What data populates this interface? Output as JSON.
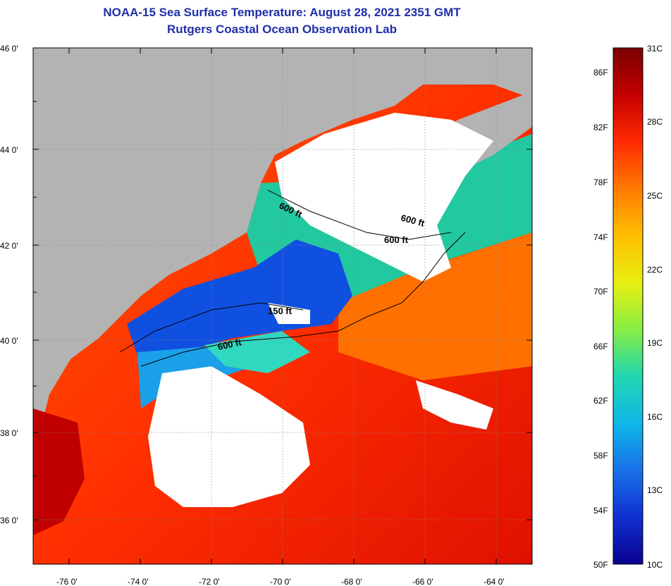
{
  "title": {
    "line1": "NOAA-15 Sea Surface Temperature:  August 28, 2021 2351 GMT",
    "line2": "Rutgers Coastal Ocean Observation Lab"
  },
  "axes": {
    "lat_labels": [
      "46 0'",
      "44 0'",
      "42 0'",
      "40 0'",
      "38 0'",
      "36 0'"
    ],
    "lon_labels": [
      "-76 0'",
      "-74 0'",
      "-72 0'",
      "-70 0'",
      "-68 0'",
      "-66 0'",
      "-64 0'"
    ]
  },
  "contours": {
    "labels": [
      "600 ft",
      "600 ft",
      "600 ft",
      "150 ft",
      "600 ft"
    ]
  },
  "colorbar": {
    "celsius_labels": [
      "31C",
      "28C",
      "25C",
      "22C",
      "19C",
      "16C",
      "13C",
      "10C"
    ],
    "fahrenheit_labels": [
      "86F",
      "82F",
      "78F",
      "74F",
      "70F",
      "66F",
      "62F",
      "58F",
      "54F",
      "50F"
    ],
    "colors": [
      "#7a0000",
      "#c40000",
      "#ff2a00",
      "#ff7a00",
      "#ffbf00",
      "#e8ef10",
      "#88ee44",
      "#1fd6b0",
      "#10b8e8",
      "#1870e8",
      "#1030d0",
      "#0a0090"
    ]
  },
  "colors": {
    "land": "#b3b3b3",
    "cloud": "#ffffff",
    "title": "#1f2fa8"
  }
}
